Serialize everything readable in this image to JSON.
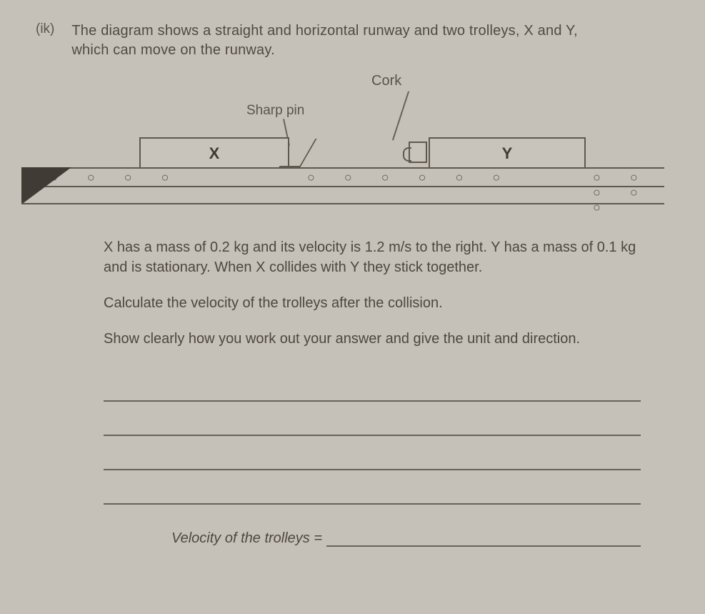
{
  "question": {
    "number": "(ik)",
    "prompt_line1": "The diagram shows a straight and horizontal runway and two trolleys, X and Y,",
    "prompt_line2": "which can move on the runway."
  },
  "diagram": {
    "label_cork": "Cork",
    "label_pin": "Sharp pin",
    "trolley_x": "X",
    "trolley_y": "Y",
    "dots_left": "○ ○ ○ ○",
    "dots_mid": "○ ○ ○ ○ ○ ○",
    "dots_right": "○ ○ ○ ○ ○",
    "track_color": "#5f584f",
    "wedge_color": "#403b35"
  },
  "body": {
    "p1": "X has a mass of 0.2 kg and its velocity is 1.2 m/s to the right. Y has a mass of 0.1 kg and is stationary. When X collides with Y they stick together.",
    "p2": "Calculate the velocity of the trolleys after the collision.",
    "p3": "Show clearly how you work out your answer and give the unit and direction."
  },
  "answer": {
    "blank_lines": 4,
    "final_label": "Velocity of the trolleys ="
  }
}
